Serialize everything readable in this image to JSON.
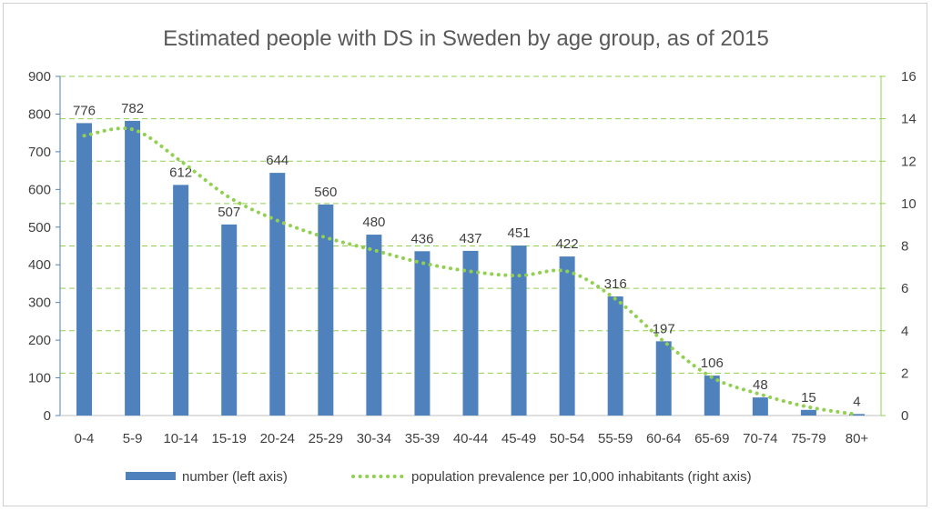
{
  "chart_data": {
    "type": "bar",
    "title": "Estimated people with DS in Sweden by age group, as of 2015",
    "categories": [
      "0-4",
      "5-9",
      "10-14",
      "15-19",
      "20-24",
      "25-29",
      "30-34",
      "35-39",
      "40-44",
      "45-49",
      "50-54",
      "55-59",
      "60-64",
      "65-69",
      "70-74",
      "75-79",
      "80+"
    ],
    "series": [
      {
        "name": "number (left axis)",
        "type": "bar",
        "axis": "left",
        "color": "#4f81bd",
        "values": [
          776,
          782,
          612,
          507,
          644,
          560,
          480,
          436,
          437,
          451,
          422,
          316,
          197,
          106,
          48,
          15,
          4
        ]
      },
      {
        "name": "population prevalence per 10,000 inhabitants (right axis)",
        "type": "line",
        "style": "dotted",
        "axis": "right",
        "color": "#92d050",
        "values": [
          13.2,
          13.5,
          12.0,
          10.3,
          9.2,
          8.4,
          7.8,
          7.2,
          6.8,
          6.6,
          6.8,
          5.5,
          3.5,
          1.8,
          1.0,
          0.4,
          0.05
        ]
      }
    ],
    "ylim_left": [
      0,
      900
    ],
    "yticks_left": [
      "0",
      "100",
      "200",
      "300",
      "400",
      "500",
      "600",
      "700",
      "800",
      "900"
    ],
    "ylim_right": [
      0,
      16
    ],
    "yticks_right": [
      "0",
      "2",
      "4",
      "6",
      "8",
      "10",
      "12",
      "14",
      "16"
    ],
    "grid": "horizontal dashed",
    "grid_color": "#92d050",
    "legend_position": "bottom"
  }
}
